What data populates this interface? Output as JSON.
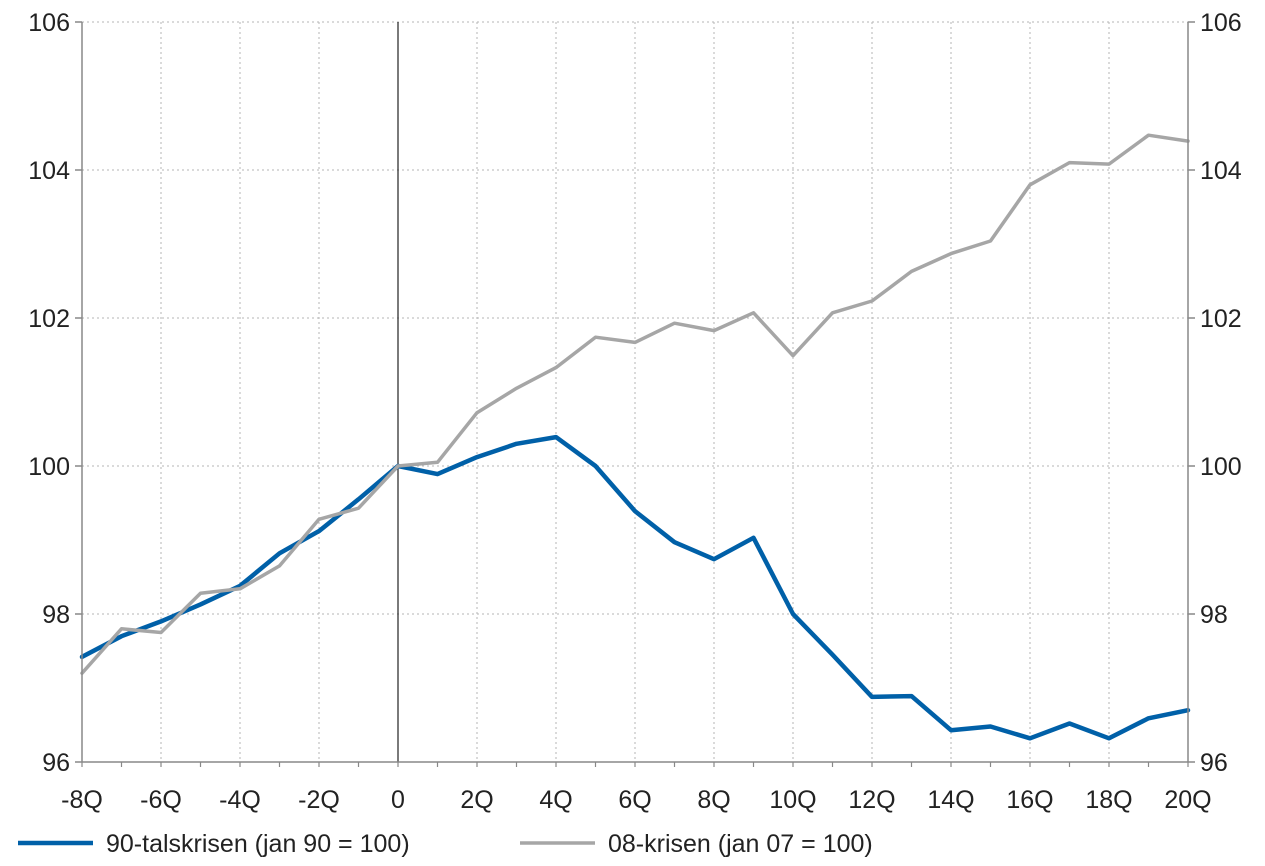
{
  "chart_data": {
    "type": "line",
    "title": "",
    "xlabel": "",
    "ylabel": "",
    "x": [
      -8,
      -7,
      -6,
      -5,
      -4,
      -3,
      -2,
      -1,
      0,
      1,
      2,
      3,
      4,
      5,
      6,
      7,
      8,
      9,
      10,
      11,
      12,
      13,
      14,
      15,
      16,
      17,
      18,
      19,
      20
    ],
    "x_tick_values": [
      -8,
      -6,
      -4,
      -2,
      0,
      2,
      4,
      6,
      8,
      10,
      12,
      14,
      16,
      18,
      20
    ],
    "x_tick_labels": [
      "-8Q",
      "-6Q",
      "-4Q",
      "-2Q",
      "0",
      "2Q",
      "4Q",
      "6Q",
      "8Q",
      "10Q",
      "12Q",
      "14Q",
      "16Q",
      "18Q",
      "20Q"
    ],
    "xlim": [
      -8,
      20
    ],
    "ylim": [
      96,
      106
    ],
    "y_ticks": [
      96,
      98,
      100,
      102,
      104,
      106
    ],
    "y_tick_labels": [
      "96",
      "98",
      "100",
      "102",
      "104",
      "106"
    ],
    "grid": true,
    "reference_line_x": 0,
    "legend_position": "bottom",
    "series": [
      {
        "name": "90-talskrisen (jan 90 = 100)",
        "color": "#0060A8",
        "values": [
          97.42,
          97.7,
          97.9,
          98.13,
          98.38,
          98.82,
          99.12,
          99.55,
          100.0,
          99.89,
          100.12,
          100.3,
          100.39,
          100.0,
          99.39,
          98.97,
          98.74,
          99.03,
          98.0,
          97.45,
          96.88,
          96.89,
          96.43,
          96.48,
          96.32,
          96.52,
          96.32,
          96.59,
          96.7
        ]
      },
      {
        "name": "08-krisen (jan 07 = 100)",
        "color": "#A6A6A6",
        "values": [
          97.2,
          97.8,
          97.75,
          98.28,
          98.34,
          98.65,
          99.28,
          99.43,
          100.0,
          100.05,
          100.72,
          101.05,
          101.33,
          101.74,
          101.67,
          101.93,
          101.83,
          102.07,
          101.49,
          102.07,
          102.23,
          102.63,
          102.87,
          103.04,
          103.8,
          104.1,
          104.08,
          104.47,
          104.39
        ]
      }
    ]
  }
}
